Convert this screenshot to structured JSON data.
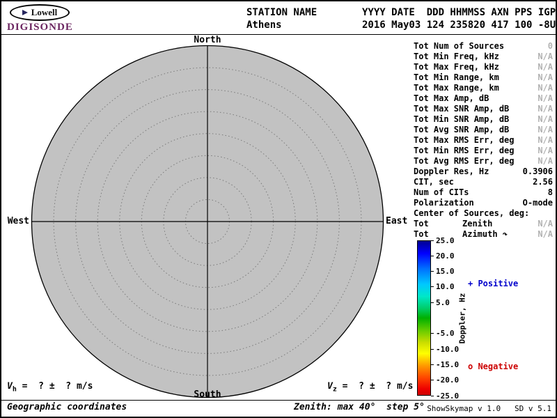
{
  "branding": {
    "logo_text": "Lowell",
    "brand_name": "DIGISONDE",
    "brand_color": "#6b2560"
  },
  "header": {
    "station_label": "STATION NAME",
    "station_value": "Athens",
    "fields_label": "YYYY DATE  DDD HHMMSS AXN PPS IGP",
    "fields_value": "2016 May03 124 235820 417 100 -8U"
  },
  "skymap": {
    "labels": {
      "north": "North",
      "south": "South",
      "west": "West",
      "east": "East"
    },
    "max_zenith_deg": 40,
    "step_deg": 5,
    "fill_color": "#c2c2c2",
    "sources": []
  },
  "stats": {
    "rows": [
      {
        "label": "Tot Num of Sources",
        "value": "0",
        "muted": true
      },
      {
        "label": "Tot Min Freq, kHz",
        "value": "N/A",
        "muted": true
      },
      {
        "label": "Tot Max Freq, kHz",
        "value": "N/A",
        "muted": true
      },
      {
        "label": "Tot Min Range, km",
        "value": "N/A",
        "muted": true
      },
      {
        "label": "Tot Max Range, km",
        "value": "N/A",
        "muted": true
      },
      {
        "label": "Tot Max Amp, dB",
        "value": "N/A",
        "muted": true
      },
      {
        "label": "Tot Max SNR Amp, dB",
        "value": "N/A",
        "muted": true
      },
      {
        "label": "Tot Min SNR Amp, dB",
        "value": "N/A",
        "muted": true
      },
      {
        "label": "Tot Avg SNR Amp, dB",
        "value": "N/A",
        "muted": true
      },
      {
        "label": "Tot Max RMS Err, deg",
        "value": "N/A",
        "muted": true
      },
      {
        "label": "Tot Min RMS Err, deg",
        "value": "N/A",
        "muted": true
      },
      {
        "label": "Tot Avg RMS Err, deg",
        "value": "N/A",
        "muted": true
      },
      {
        "label": "Doppler Res, Hz",
        "value": "0.3906",
        "muted": false
      },
      {
        "label": "CIT, sec",
        "value": "2.56",
        "muted": false
      },
      {
        "label": "Num of CITs",
        "value": "8",
        "muted": false
      },
      {
        "label": "Polarization",
        "value": "O-mode",
        "muted": false
      },
      {
        "label": "Center of Sources, deg:",
        "value": "",
        "muted": false
      },
      {
        "label": "Tot",
        "mid": "Zenith",
        "value": "N/A",
        "muted": true
      },
      {
        "label": "Tot",
        "mid": "Azimuth ↷",
        "value": "N/A",
        "muted": true
      }
    ]
  },
  "colorbar": {
    "title": "Doppler, Hz",
    "max": 25,
    "min": -25,
    "ticks": [
      "25.0",
      "20.0",
      "15.0",
      "10.0",
      "5.0",
      "-5.0",
      "-10.0",
      "-15.0",
      "-20.0",
      "-25.0"
    ],
    "gradient": [
      [
        0.0,
        "#000090"
      ],
      [
        0.08,
        "#0000ff"
      ],
      [
        0.18,
        "#0070ff"
      ],
      [
        0.28,
        "#00c8ff"
      ],
      [
        0.36,
        "#00e8c8"
      ],
      [
        0.44,
        "#00cc66"
      ],
      [
        0.5,
        "#00b000"
      ],
      [
        0.58,
        "#66cc00"
      ],
      [
        0.66,
        "#ccdd00"
      ],
      [
        0.73,
        "#ffff00"
      ],
      [
        0.81,
        "#ff9900"
      ],
      [
        0.89,
        "#ff4400"
      ],
      [
        0.96,
        "#ee0000"
      ],
      [
        1.0,
        "#cc0000"
      ]
    ],
    "positive_label": "+ Positive",
    "negative_label": "o Negative",
    "positive_color": "#0000cc",
    "negative_color": "#cc0000"
  },
  "footer": {
    "vh": {
      "sym": "V",
      "sub": "h",
      "rest": " =  ? ±  ? m/s"
    },
    "vz": {
      "sym": "V",
      "sub": "z",
      "rest": " =  ? ±  ? m/s"
    },
    "coordinates_note": "Geographic coordinates",
    "zenith_note": "Zenith: max 40°  step 5°",
    "version": "ShowSkymap v 1.0   SD v 5.1"
  }
}
